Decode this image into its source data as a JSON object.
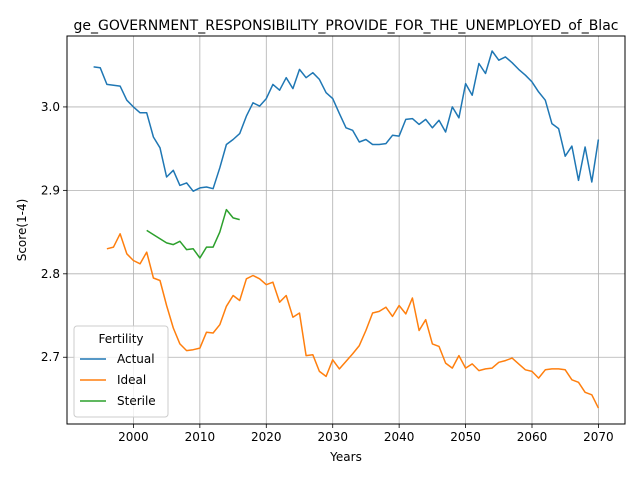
{
  "chart_data": {
    "type": "line",
    "title": "ge_GOVERNMENT_RESPONSIBILITY_PROVIDE_FOR_THE_UNEMPLOYED_of_Blac",
    "xlabel": "Years",
    "ylabel": "Score(1-4)",
    "xlim": [
      1990,
      2074
    ],
    "ylim": [
      2.62,
      3.085
    ],
    "xticks": [
      2000,
      2010,
      2020,
      2030,
      2040,
      2050,
      2060,
      2070
    ],
    "yticks": [
      2.7,
      2.8,
      2.9,
      3.0
    ],
    "ytick_labels": [
      "2.7",
      "2.8",
      "2.9",
      "3.0"
    ],
    "grid": true,
    "legend": {
      "title": "Fertility",
      "placement": "lower-left"
    },
    "series": [
      {
        "name": "Actual",
        "color": "#1f77b4",
        "x": [
          1994,
          1995,
          1996,
          1997,
          1998,
          1999,
          2000,
          2001,
          2002,
          2003,
          2004,
          2005,
          2006,
          2007,
          2008,
          2009,
          2010,
          2011,
          2012,
          2013,
          2014,
          2015,
          2016,
          2017,
          2018,
          2019,
          2020,
          2021,
          2022,
          2023,
          2024,
          2025,
          2026,
          2027,
          2028,
          2029,
          2030,
          2031,
          2032,
          2033,
          2034,
          2035,
          2036,
          2037,
          2038,
          2039,
          2040,
          2041,
          2042,
          2043,
          2044,
          2045,
          2046,
          2047,
          2048,
          2049,
          2050,
          2051,
          2052,
          2053,
          2054,
          2055,
          2056,
          2057,
          2058,
          2059,
          2060,
          2061,
          2062,
          2063,
          2064,
          2065,
          2066,
          2067,
          2068,
          2069,
          2070
        ],
        "values": [
          3.048,
          3.047,
          3.027,
          3.026,
          3.025,
          3.008,
          3.0,
          2.993,
          2.993,
          2.964,
          2.951,
          2.916,
          2.924,
          2.906,
          2.909,
          2.899,
          2.903,
          2.904,
          2.902,
          2.927,
          2.955,
          2.961,
          2.968,
          2.989,
          3.005,
          3.001,
          3.01,
          3.027,
          3.02,
          3.035,
          3.022,
          3.045,
          3.035,
          3.041,
          3.033,
          3.017,
          3.01,
          2.992,
          2.975,
          2.972,
          2.958,
          2.961,
          2.955,
          2.955,
          2.956,
          2.966,
          2.965,
          2.985,
          2.986,
          2.979,
          2.985,
          2.975,
          2.984,
          2.97,
          3.0,
          2.987,
          3.028,
          3.014,
          3.052,
          3.04,
          3.067,
          3.056,
          3.06,
          3.053,
          3.045,
          3.038,
          3.03,
          3.018,
          3.008,
          2.98,
          2.974,
          2.941,
          2.953,
          2.912,
          2.952,
          2.91,
          2.961
        ]
      },
      {
        "name": "Ideal",
        "color": "#ff7f0e",
        "x": [
          1996,
          1997,
          1998,
          1999,
          2000,
          2001,
          2002,
          2003,
          2004,
          2005,
          2006,
          2007,
          2008,
          2009,
          2010,
          2011,
          2012,
          2013,
          2014,
          2015,
          2016,
          2017,
          2018,
          2019,
          2020,
          2021,
          2022,
          2023,
          2024,
          2025,
          2026,
          2027,
          2028,
          2029,
          2030,
          2031,
          2032,
          2033,
          2034,
          2035,
          2036,
          2037,
          2038,
          2039,
          2040,
          2041,
          2042,
          2043,
          2044,
          2045,
          2046,
          2047,
          2048,
          2049,
          2050,
          2051,
          2052,
          2053,
          2054,
          2055,
          2056,
          2057,
          2058,
          2059,
          2060,
          2061,
          2062,
          2063,
          2064,
          2065,
          2066,
          2067,
          2068,
          2069,
          2070
        ],
        "values": [
          2.83,
          2.832,
          2.848,
          2.824,
          2.816,
          2.812,
          2.826,
          2.795,
          2.792,
          2.762,
          2.735,
          2.716,
          2.708,
          2.709,
          2.711,
          2.73,
          2.729,
          2.739,
          2.761,
          2.774,
          2.768,
          2.794,
          2.798,
          2.794,
          2.787,
          2.79,
          2.766,
          2.774,
          2.748,
          2.753,
          2.702,
          2.703,
          2.683,
          2.677,
          2.697,
          2.686,
          2.695,
          2.704,
          2.714,
          2.732,
          2.753,
          2.755,
          2.76,
          2.749,
          2.762,
          2.752,
          2.771,
          2.732,
          2.745,
          2.716,
          2.713,
          2.693,
          2.687,
          2.702,
          2.687,
          2.692,
          2.684,
          2.686,
          2.687,
          2.694,
          2.696,
          2.699,
          2.692,
          2.685,
          2.683,
          2.675,
          2.685,
          2.686,
          2.686,
          2.685,
          2.673,
          2.67,
          2.658,
          2.655,
          2.639
        ]
      },
      {
        "name": "Sterile",
        "color": "#2ca02c",
        "x": [
          2002,
          2003,
          2004,
          2005,
          2006,
          2007,
          2008,
          2009,
          2010,
          2011,
          2012,
          2013,
          2014,
          2015,
          2016
        ],
        "values": [
          2.852,
          2.847,
          2.842,
          2.837,
          2.835,
          2.839,
          2.829,
          2.83,
          2.819,
          2.832,
          2.832,
          2.85,
          2.877,
          2.867,
          2.865
        ]
      }
    ]
  }
}
